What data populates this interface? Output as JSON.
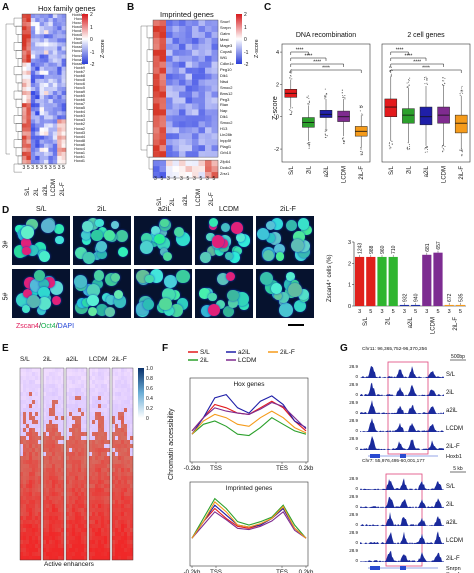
{
  "panels": {
    "A": {
      "letter": "A",
      "title": "Hox family genes",
      "zscore_label": "Z-score",
      "colorbar_ticks": [
        "2",
        "1",
        "0",
        "-1",
        "-2"
      ],
      "conditions": [
        "S/L",
        "2iL",
        "a2iL",
        "LCDM",
        "2iL-F"
      ],
      "reps": [
        "3",
        "5"
      ],
      "genes": [
        "Hoxb13",
        "Hoxc9",
        "Hoxc11",
        "Hoxd10",
        "Hoxd11",
        "Hoxd12",
        "Hoxd9",
        "Hoxd13",
        "Hoxa13",
        "Hoxc12",
        "Hoxc13",
        "Hoxa11",
        "Hoxa10",
        "Hoxb9",
        "Hoxb7",
        "Hoxb8",
        "Hoxc8",
        "Hoxc6",
        "Hoxc5",
        "Hoxa9",
        "Hoxb5",
        "Hoxb6",
        "Hoxa7",
        "Hoxa5",
        "Hoxb4",
        "Hoxb3",
        "Hoxa3",
        "Hoxb2",
        "Hoxa2",
        "Hoxd3",
        "Hoxd4",
        "Hoxd8",
        "Hoxa6",
        "Hoxc4",
        "Hoxa1",
        "Hoxb1",
        "Hoxd1"
      ]
    },
    "B": {
      "letter": "B",
      "title": "Imprinted genes",
      "zscore_label": "Z-score",
      "colorbar_ticks": [
        "2",
        "1",
        "0",
        "-1",
        "-2"
      ],
      "genes": [
        "Snurf",
        "Snrpn",
        "Gatm",
        "Mest",
        "Mage3",
        "Copa6",
        "Wt1",
        "Cdkn1c",
        "Peg10",
        "Dlk1",
        "Ntsd",
        "Smoc2",
        "Bms12",
        "Peg3",
        "Rian",
        "Nap",
        "Dlk1",
        "Smoc2",
        "H13",
        "Lin28b",
        "Inpp5f",
        "Plagl1",
        "Grb10",
        "Zfp64",
        "Dcdc2",
        "Zrsr1"
      ]
    },
    "C": {
      "letter": "C",
      "titles": [
        "DNA recombination",
        "2 cell genes"
      ],
      "ylabel": "Z-score",
      "yticks": [
        "4",
        "2",
        "0",
        "-2"
      ],
      "categories": [
        "S/L",
        "2iL",
        "a2iL",
        "LCDM",
        "2iL-F"
      ],
      "sig": "****"
    },
    "D": {
      "letter": "D",
      "conditions": [
        "S/L",
        "2iL",
        "a2iL",
        "LCDM",
        "2iL-F"
      ],
      "row_labels": [
        "3#",
        "5#"
      ],
      "legend": [
        "Zscan4",
        "/",
        "Oct4",
        "/",
        "DAPI"
      ],
      "ylabel": "Zscan4⁺ cells (%)",
      "yticks": [
        "3",
        "2",
        "1",
        "0"
      ],
      "counts": [
        "1243",
        "988",
        "960",
        "710",
        "932",
        "940",
        "681",
        "657",
        "672",
        "535"
      ],
      "bar_reps": [
        "3",
        "5",
        "3",
        "5",
        "3",
        "5",
        "3",
        "5",
        "3",
        "5"
      ],
      "bar_categories": [
        "S/L",
        "2iL",
        "a2iL",
        "LCDM",
        "2iL-F"
      ]
    },
    "E": {
      "letter": "E",
      "columns": [
        "S/L",
        "2iL",
        "a2iL",
        "LCDM",
        "2iL-F"
      ],
      "bottom_label": "Active enhancers",
      "colorbar_ticks": [
        "1.0",
        "0.8",
        "0.6",
        "0.4",
        "0.2",
        "0"
      ]
    },
    "F": {
      "letter": "F",
      "legend": [
        "S/L",
        "2iL",
        "a2iL",
        "LCDM",
        "2iL-F"
      ],
      "titles": [
        "Hox genes",
        "Imprinted genes"
      ],
      "ylabel": "Chromatin accessibility",
      "xticks": [
        "-0.2kb",
        "TSS",
        "TES",
        "0.2kb"
      ]
    },
    "G": {
      "letter": "G",
      "loci": [
        "Chr11: 96,365,752-96,370,256",
        "Chr7: 55,976,495-60,001,177"
      ],
      "scale_bars": [
        "500bp",
        "5 kb"
      ],
      "scale_value": "28.9",
      "scale_zero": "0",
      "tracks": [
        "S/L",
        "2iL",
        "a2iL",
        "LCDM",
        "2iL-F"
      ],
      "genes_top": [
        "Hoxb1"
      ],
      "genes_bottom": [
        "Snrpn",
        "Snurf"
      ]
    }
  },
  "chart_data": [
    {
      "type": "box",
      "title": "DNA recombination",
      "ylabel": "Z-score",
      "categories": [
        "S/L",
        "2iL",
        "a2iL",
        "LCDM",
        "2iL-F"
      ],
      "boxes": [
        {
          "q1": 1.2,
          "median": 1.45,
          "q3": 1.7,
          "lo": 0.6,
          "hi": 2.3
        },
        {
          "q1": -0.65,
          "median": -0.35,
          "q3": -0.05,
          "lo": -1.5,
          "hi": 0.7
        },
        {
          "q1": -0.05,
          "median": 0.15,
          "q3": 0.4,
          "lo": -0.8,
          "hi": 1.1
        },
        {
          "q1": -0.3,
          "median": 0.0,
          "q3": 0.35,
          "lo": -1.2,
          "hi": 1.1
        },
        {
          "q1": -1.2,
          "median": -0.9,
          "q3": -0.6,
          "lo": -1.9,
          "hi": 0.1
        }
      ],
      "ylim": [
        -2.8,
        4.5
      ]
    },
    {
      "type": "box",
      "title": "2 cell genes",
      "ylabel": "Z-score",
      "categories": [
        "S/L",
        "2iL",
        "a2iL",
        "LCDM",
        "2iL-F"
      ],
      "boxes": [
        {
          "q1": 0.0,
          "median": 0.6,
          "q3": 1.1,
          "lo": -1.5,
          "hi": 2.5
        },
        {
          "q1": -0.4,
          "median": 0.1,
          "q3": 0.5,
          "lo": -1.6,
          "hi": 1.8
        },
        {
          "q1": -0.5,
          "median": 0.0,
          "q3": 0.6,
          "lo": -1.8,
          "hi": 1.9
        },
        {
          "q1": -0.4,
          "median": 0.1,
          "q3": 0.6,
          "lo": -1.7,
          "hi": 1.9
        },
        {
          "q1": -1.0,
          "median": -0.4,
          "q3": 0.1,
          "lo": -2.0,
          "hi": 1.3
        }
      ],
      "ylim": [
        -2.8,
        4.5
      ]
    },
    {
      "type": "bar",
      "title": "",
      "ylabel": "Zscan4⁺ cells (%)",
      "categories": [
        "S/L 3",
        "S/L 5",
        "2iL 3",
        "2iL 5",
        "a2iL 3",
        "a2iL 5",
        "LCDM 3",
        "LCDM 5",
        "2iL-F 3",
        "2iL-F 5"
      ],
      "values": [
        2.3,
        2.3,
        2.3,
        2.3,
        0.05,
        0.05,
        2.4,
        2.5,
        0.05,
        0.05
      ],
      "colors": [
        "#e0201b",
        "#e0201b",
        "#2fb52f",
        "#2fb52f",
        "#1c2fa8",
        "#1c2fa8",
        "#7d2c91",
        "#7d2c91",
        "#f59a1b",
        "#f59a1b"
      ],
      "ylim": [
        0,
        3
      ]
    },
    {
      "type": "line",
      "title": "Hox genes",
      "series": [
        {
          "name": "S/L",
          "color": "#e31a1c",
          "values": [
            0.35,
            0.55,
            0.75,
            0.7,
            0.62,
            0.6,
            0.7,
            0.8,
            0.7,
            0.5,
            0.35
          ]
        },
        {
          "name": "2iL",
          "color": "#2ca02c",
          "values": [
            0.3,
            0.45,
            0.5,
            0.42,
            0.3,
            0.28,
            0.4,
            0.55,
            0.45,
            0.35,
            0.3
          ]
        },
        {
          "name": "a2iL",
          "color": "#1f1fa8",
          "values": [
            0.3,
            0.55,
            0.85,
            0.9,
            0.7,
            0.62,
            0.8,
            0.88,
            0.75,
            0.5,
            0.4
          ]
        },
        {
          "name": "LCDM",
          "color": "#7f2b8f",
          "values": [
            0.35,
            0.55,
            0.7,
            0.65,
            0.62,
            0.6,
            0.68,
            0.78,
            0.72,
            0.55,
            0.38
          ]
        },
        {
          "name": "2iL-F",
          "color": "#f59b1b",
          "values": [
            0.3,
            0.5,
            0.6,
            0.55,
            0.45,
            0.42,
            0.55,
            0.65,
            0.55,
            0.4,
            0.32
          ]
        }
      ]
    },
    {
      "type": "line",
      "title": "Imprinted genes",
      "series": [
        {
          "name": "S/L",
          "color": "#e31a1c",
          "values": [
            0.3,
            0.55,
            0.75,
            0.6,
            0.48,
            0.45,
            0.5,
            0.6,
            0.75,
            0.45,
            0.3
          ]
        },
        {
          "name": "2iL",
          "color": "#2ca02c",
          "values": [
            0.3,
            0.6,
            0.9,
            0.75,
            0.55,
            0.5,
            0.55,
            0.62,
            0.8,
            0.5,
            0.3
          ]
        },
        {
          "name": "a2iL",
          "color": "#1f1fa8",
          "values": [
            0.3,
            0.55,
            0.8,
            0.65,
            0.5,
            0.47,
            0.5,
            0.6,
            0.75,
            0.45,
            0.3
          ]
        },
        {
          "name": "LCDM",
          "color": "#7f2b8f",
          "values": [
            0.3,
            0.5,
            0.7,
            0.58,
            0.45,
            0.43,
            0.48,
            0.56,
            0.7,
            0.42,
            0.3
          ]
        },
        {
          "name": "2iL-F",
          "color": "#f59b1b",
          "values": [
            0.3,
            0.55,
            0.85,
            0.7,
            0.5,
            0.47,
            0.52,
            0.6,
            0.78,
            0.45,
            0.3
          ]
        }
      ]
    }
  ],
  "colors": {
    "red": "#e31a1c",
    "green": "#2ca02c",
    "blue": "#1f1fa8",
    "purple": "#7f2b8f",
    "orange": "#f59b1b"
  }
}
